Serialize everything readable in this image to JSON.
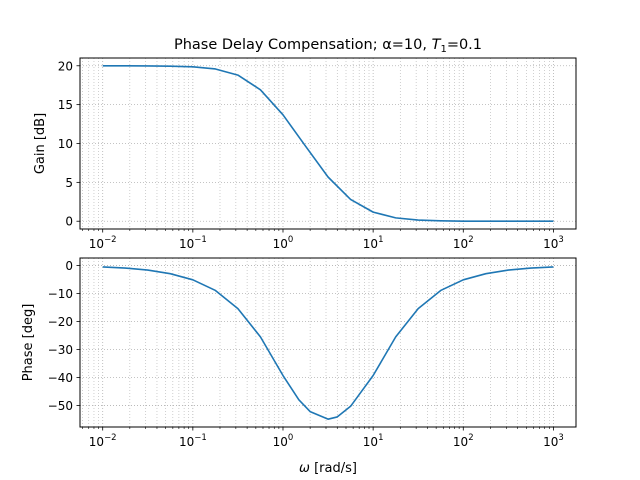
{
  "title": {
    "prefix": "Phase Delay Compensation; α=10, ",
    "t_var": "T",
    "t_sub": "1",
    "suffix": "=0.1"
  },
  "colors": {
    "line": "#1f77b4",
    "grid": "#b0b0b0",
    "axes": "#000000",
    "background": "#ffffff"
  },
  "chart_data": [
    {
      "type": "line",
      "ylabel": "Gain [dB]",
      "xscale": "log",
      "xlim": [
        0.0056,
        1780
      ],
      "ylim": [
        -1,
        21
      ],
      "grid": true,
      "yticks": [
        0,
        5,
        10,
        15,
        20
      ],
      "xticks": [
        {
          "value": 0.01,
          "base": "10",
          "exp": "−2"
        },
        {
          "value": 0.1,
          "base": "10",
          "exp": "−1"
        },
        {
          "value": 1,
          "base": "10",
          "exp": "0"
        },
        {
          "value": 10,
          "base": "10",
          "exp": "1"
        },
        {
          "value": 100,
          "base": "10",
          "exp": "2"
        },
        {
          "value": 1000,
          "base": "10",
          "exp": "3"
        }
      ],
      "series": [
        {
          "x": [
            0.01,
            0.0178,
            0.0316,
            0.0562,
            0.1,
            0.178,
            0.316,
            0.562,
            1,
            1.78,
            3.16,
            5.62,
            10,
            17.8,
            31.6,
            56.2,
            100,
            178,
            316,
            562,
            1000
          ],
          "y": [
            20.0,
            20.0,
            19.98,
            19.95,
            19.87,
            19.59,
            18.8,
            16.91,
            13.69,
            9.65,
            5.69,
            2.8,
            1.17,
            0.43,
            0.15,
            0.05,
            0.01,
            0.0,
            0.0,
            0.0,
            0.0
          ]
        }
      ]
    },
    {
      "type": "line",
      "ylabel": "Phase [deg]",
      "xlabel_var": "ω",
      "xlabel_unit": " [rad/s]",
      "xscale": "log",
      "xlim": [
        0.0056,
        1780
      ],
      "ylim": [
        -57.7,
        2.7
      ],
      "grid": true,
      "yticks": [
        0,
        -10,
        -20,
        -30,
        -40,
        -50
      ],
      "ytick_labels": [
        "0",
        "−10",
        "−20",
        "−30",
        "−40",
        "−50"
      ],
      "xticks": [
        {
          "value": 0.01,
          "base": "10",
          "exp": "−2"
        },
        {
          "value": 0.1,
          "base": "10",
          "exp": "−1"
        },
        {
          "value": 1,
          "base": "10",
          "exp": "0"
        },
        {
          "value": 10,
          "base": "10",
          "exp": "1"
        },
        {
          "value": 100,
          "base": "10",
          "exp": "2"
        },
        {
          "value": 1000,
          "base": "10",
          "exp": "3"
        }
      ],
      "series": [
        {
          "x": [
            0.01,
            0.0178,
            0.0316,
            0.0562,
            0.1,
            0.178,
            0.316,
            0.562,
            1,
            1.5,
            2,
            3.16,
            4,
            5.62,
            10,
            17.8,
            31.6,
            56.2,
            100,
            178,
            316,
            562,
            1000
          ],
          "y": [
            -0.5,
            -0.9,
            -1.6,
            -2.9,
            -5.1,
            -8.9,
            -15.4,
            -25.5,
            -39.3,
            -48.0,
            -52.2,
            -54.9,
            -54.1,
            -50.3,
            -39.3,
            -25.5,
            -15.4,
            -8.9,
            -5.1,
            -2.9,
            -1.6,
            -0.9,
            -0.5
          ]
        }
      ]
    }
  ]
}
